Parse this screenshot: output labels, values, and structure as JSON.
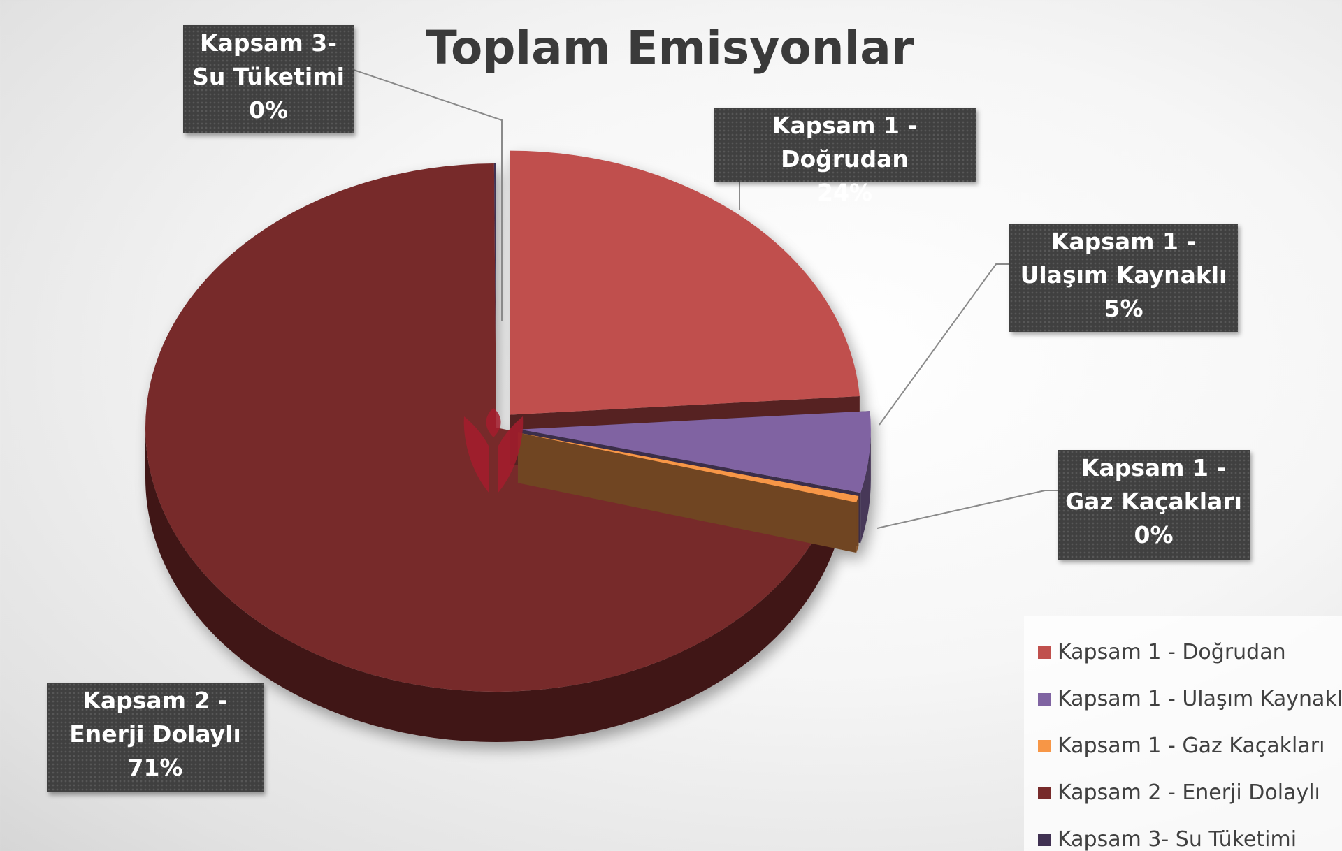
{
  "chart_data": {
    "type": "pie",
    "title": "Toplam Emisyonlar",
    "series": [
      {
        "name": "Kapsam 1 - Doğrudan",
        "value": 24,
        "label_name": "Kapsam 1 - Doğrudan",
        "label_pct": "24%",
        "color": "#c0504d"
      },
      {
        "name": "Kapsam 1 - Ulaşım Kaynaklı",
        "value": 5,
        "label_name": "Kapsam 1 - Ulaşım Kaynaklı",
        "label_pct": "5%",
        "color": "#8064a2"
      },
      {
        "name": "Kapsam 1 - Gaz Kaçakları",
        "value": 0.4,
        "label_name": "Kapsam 1 - Gaz Kaçakları",
        "label_pct": "0%",
        "color": "#f79646"
      },
      {
        "name": "Kapsam 2 - Enerji Dolaylı",
        "value": 71,
        "label_name": "Kapsam 2 - Enerji Dolaylı",
        "label_pct": "71%",
        "color": "#772b2b"
      },
      {
        "name": "Kapsam 3- Su Tüketimi",
        "value": 0.1,
        "label_name": "Kapsam 3- Su Tüketimi",
        "label_pct": "0%",
        "color": "#403152"
      }
    ],
    "legend_position": "bottom-right"
  }
}
